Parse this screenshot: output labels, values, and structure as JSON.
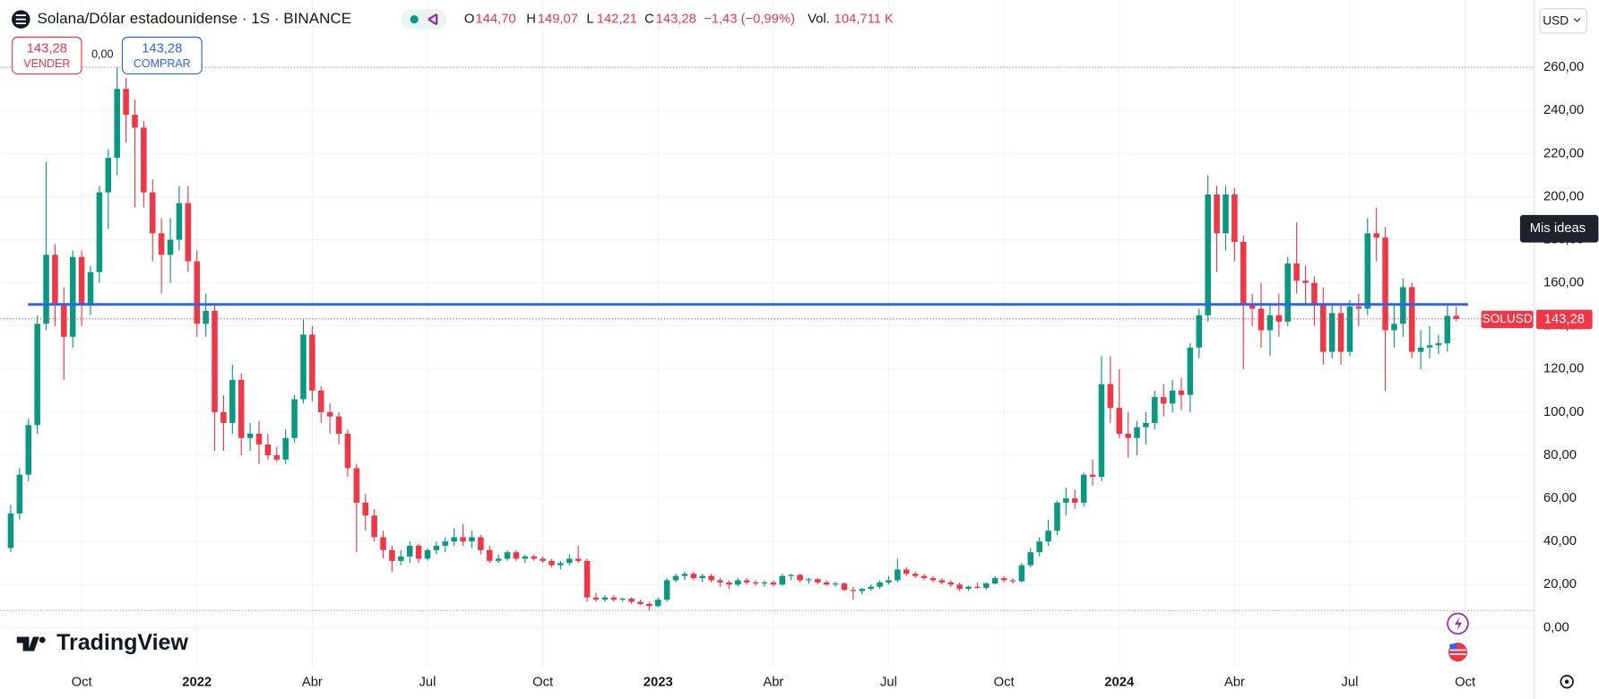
{
  "header": {
    "title": "Solana/Dólar estadounidense · 1S · BINANCE",
    "o_label": "O",
    "o": "144,70",
    "h_label": "H",
    "h": "149,07",
    "l_label": "L",
    "l": "142,21",
    "c_label": "C",
    "c": "143,28",
    "change": "−1,43 (−0,99%)",
    "vol_label": "Vol.",
    "vol": "104,711 K"
  },
  "trade": {
    "sell_price": "143,28",
    "sell": "VENDER",
    "spread": "0,00",
    "buy_price": "143,28",
    "buy": "COMPRAR"
  },
  "currency": "USD",
  "ideas": "Mis ideas",
  "brand": "TradingView",
  "price_label": {
    "symbol": "SOLUSD",
    "price": "143,28"
  },
  "chart_data": {
    "type": "candlestick",
    "up_color": "#089981",
    "down_color": "#f23645",
    "grid": true,
    "ylim": [
      -18.44,
      291.25
    ],
    "xlim": [
      -1.15,
      171.8
    ],
    "yticks": [
      {
        "value": 0,
        "label": "0,00"
      },
      {
        "value": 20,
        "label": "20,00"
      },
      {
        "value": 40,
        "label": "40,00"
      },
      {
        "value": 60,
        "label": "60,00"
      },
      {
        "value": 80,
        "label": "80,00"
      },
      {
        "value": 100,
        "label": "100,00"
      },
      {
        "value": 120,
        "label": "120,00"
      },
      {
        "value": 140,
        "label": "140,00"
      },
      {
        "value": 160,
        "label": "160,00"
      },
      {
        "value": 180,
        "label": "180,00"
      },
      {
        "value": 200,
        "label": "200,00"
      },
      {
        "value": 220,
        "label": "220,00"
      },
      {
        "value": 240,
        "label": "240,00"
      },
      {
        "value": 260,
        "label": "260,00"
      }
    ],
    "xticks": [
      {
        "value": 8,
        "label": "Oct"
      },
      {
        "value": 21,
        "label": "2022",
        "major": true
      },
      {
        "value": 34,
        "label": "Abr"
      },
      {
        "value": 47,
        "label": "Jul"
      },
      {
        "value": 60,
        "label": "Oct"
      },
      {
        "value": 73,
        "label": "2023",
        "major": true
      },
      {
        "value": 86,
        "label": "Abr"
      },
      {
        "value": 99,
        "label": "Jul"
      },
      {
        "value": 112,
        "label": "Oct"
      },
      {
        "value": 125,
        "label": "2024",
        "major": true
      },
      {
        "value": 138,
        "label": "Abr"
      },
      {
        "value": 151,
        "label": "Jul"
      },
      {
        "value": 164,
        "label": "Oct"
      }
    ],
    "horizontal_line": {
      "value": 150,
      "color": "#2962ff"
    },
    "high_low_lines": [
      260,
      8
    ],
    "ohlc": [
      [
        37,
        57,
        35,
        53
      ],
      [
        53,
        74,
        50,
        71
      ],
      [
        71,
        97,
        68,
        94
      ],
      [
        94,
        145,
        90,
        141
      ],
      [
        141,
        216,
        138,
        173
      ],
      [
        173,
        178,
        140,
        150
      ],
      [
        150,
        158,
        115,
        135
      ],
      [
        135,
        175,
        130,
        172
      ],
      [
        172,
        175,
        140,
        150
      ],
      [
        150,
        168,
        145,
        165
      ],
      [
        165,
        205,
        160,
        202
      ],
      [
        202,
        222,
        185,
        218
      ],
      [
        218,
        260,
        210,
        250
      ],
      [
        250,
        255,
        225,
        238
      ],
      [
        238,
        245,
        195,
        232
      ],
      [
        232,
        235,
        195,
        202
      ],
      [
        202,
        208,
        170,
        183
      ],
      [
        183,
        190,
        155,
        173
      ],
      [
        173,
        190,
        160,
        180
      ],
      [
        180,
        205,
        175,
        197
      ],
      [
        197,
        205,
        165,
        170
      ],
      [
        170,
        175,
        135,
        141
      ],
      [
        141,
        155,
        135,
        147
      ],
      [
        147,
        150,
        82,
        100
      ],
      [
        100,
        108,
        82,
        95
      ],
      [
        95,
        122,
        90,
        115
      ],
      [
        115,
        118,
        80,
        88
      ],
      [
        88,
        95,
        82,
        90
      ],
      [
        90,
        96,
        76,
        85
      ],
      [
        85,
        90,
        78,
        80
      ],
      [
        80,
        84,
        77,
        78
      ],
      [
        78,
        92,
        76,
        88
      ],
      [
        88,
        108,
        86,
        106
      ],
      [
        106,
        143,
        104,
        136
      ],
      [
        136,
        140,
        105,
        110
      ],
      [
        110,
        112,
        95,
        100
      ],
      [
        100,
        104,
        90,
        98
      ],
      [
        98,
        100,
        85,
        90
      ],
      [
        90,
        92,
        70,
        74
      ],
      [
        74,
        76,
        35,
        58
      ],
      [
        58,
        62,
        45,
        52
      ],
      [
        52,
        55,
        40,
        42
      ],
      [
        42,
        45,
        32,
        36
      ],
      [
        36,
        38,
        26,
        31
      ],
      [
        31,
        36,
        29,
        33
      ],
      [
        33,
        40,
        30,
        38
      ],
      [
        38,
        39,
        30,
        32
      ],
      [
        32,
        37,
        31,
        36
      ],
      [
        36,
        40,
        34,
        38
      ],
      [
        38,
        42,
        35,
        40
      ],
      [
        40,
        46,
        38,
        42
      ],
      [
        42,
        48,
        38,
        40
      ],
      [
        40,
        45,
        37,
        42
      ],
      [
        42,
        43,
        34,
        36
      ],
      [
        36,
        38,
        30,
        31
      ],
      [
        31,
        34,
        30,
        32
      ],
      [
        32,
        36,
        31,
        35
      ],
      [
        35,
        36,
        31,
        32
      ],
      [
        32,
        34,
        30,
        33
      ],
      [
        33,
        34,
        31,
        32
      ],
      [
        32,
        33,
        30,
        31
      ],
      [
        31,
        32,
        28,
        29
      ],
      [
        29,
        31,
        27,
        30
      ],
      [
        30,
        34,
        29,
        32
      ],
      [
        32,
        38,
        30,
        31
      ],
      [
        31,
        32,
        12,
        14
      ],
      [
        14,
        16,
        12,
        13
      ],
      [
        13,
        15,
        12,
        14
      ],
      [
        14,
        15,
        12,
        13
      ],
      [
        13,
        14,
        12,
        13.5
      ],
      [
        13.5,
        14,
        11,
        12
      ],
      [
        12,
        13,
        10.5,
        11
      ],
      [
        11,
        12,
        8,
        10
      ],
      [
        10,
        14,
        9.5,
        13
      ],
      [
        13,
        23,
        12,
        22
      ],
      [
        22,
        25,
        21,
        24
      ],
      [
        24,
        26,
        22,
        25
      ],
      [
        25,
        26,
        22,
        23
      ],
      [
        23,
        25,
        21,
        24
      ],
      [
        24,
        25,
        21,
        22
      ],
      [
        22,
        23,
        19,
        21
      ],
      [
        21,
        22,
        18,
        20
      ],
      [
        20,
        23,
        19,
        22
      ],
      [
        22,
        23,
        20,
        21
      ],
      [
        21,
        22,
        19.5,
        20.5
      ],
      [
        20.5,
        22,
        19,
        21
      ],
      [
        21,
        22,
        19,
        20
      ],
      [
        20,
        25,
        19.5,
        24
      ],
      [
        24,
        25,
        22,
        24.5
      ],
      [
        24.5,
        25,
        21,
        22
      ],
      [
        22,
        23,
        20.5,
        22.5
      ],
      [
        22.5,
        23,
        20,
        21
      ],
      [
        21,
        22,
        19.5,
        20
      ],
      [
        20,
        21.5,
        19,
        20.5
      ],
      [
        20.5,
        21,
        17,
        17.5
      ],
      [
        17.5,
        19,
        13,
        17
      ],
      [
        17,
        18.5,
        15.5,
        18
      ],
      [
        18,
        20,
        17,
        19
      ],
      [
        19,
        22,
        18,
        21
      ],
      [
        21,
        24,
        20,
        22
      ],
      [
        22,
        32,
        21,
        27
      ],
      [
        27,
        28,
        24,
        25
      ],
      [
        25,
        26,
        23,
        24
      ],
      [
        24,
        25,
        22,
        23
      ],
      [
        23,
        24,
        21,
        22
      ],
      [
        22,
        23,
        20,
        21
      ],
      [
        21,
        22,
        19,
        20
      ],
      [
        20,
        21,
        17,
        18
      ],
      [
        18,
        19.5,
        17,
        19
      ],
      [
        19,
        21,
        18,
        18.5
      ],
      [
        18.5,
        21,
        17.5,
        20.5
      ],
      [
        20.5,
        24,
        20,
        23
      ],
      [
        23,
        24,
        21,
        22
      ],
      [
        22,
        23,
        20.5,
        21.5
      ],
      [
        21.5,
        30,
        21,
        29
      ],
      [
        29,
        37,
        28,
        35
      ],
      [
        35,
        42,
        33,
        40
      ],
      [
        40,
        50,
        38,
        45
      ],
      [
        45,
        59,
        43,
        58
      ],
      [
        58,
        65,
        52,
        60
      ],
      [
        60,
        64,
        55,
        58
      ],
      [
        58,
        72,
        56,
        71
      ],
      [
        71,
        78,
        66,
        70
      ],
      [
        70,
        126,
        68,
        113
      ],
      [
        113,
        126,
        95,
        102
      ],
      [
        102,
        120,
        88,
        90
      ],
      [
        90,
        100,
        79,
        88
      ],
      [
        88,
        96,
        80,
        93
      ],
      [
        93,
        100,
        85,
        95
      ],
      [
        95,
        110,
        92,
        107
      ],
      [
        107,
        113,
        98,
        104
      ],
      [
        104,
        115,
        100,
        110
      ],
      [
        110,
        116,
        101,
        108
      ],
      [
        108,
        132,
        100,
        130
      ],
      [
        130,
        148,
        125,
        145
      ],
      [
        145,
        210,
        142,
        201
      ],
      [
        201,
        205,
        165,
        183
      ],
      [
        183,
        205,
        175,
        201
      ],
      [
        201,
        204,
        170,
        179
      ],
      [
        179,
        182,
        120,
        150
      ],
      [
        150,
        155,
        140,
        148
      ],
      [
        148,
        160,
        130,
        138
      ],
      [
        138,
        150,
        126,
        145
      ],
      [
        145,
        155,
        135,
        142
      ],
      [
        142,
        172,
        140,
        169
      ],
      [
        169,
        188,
        155,
        161
      ],
      [
        161,
        168,
        150,
        160
      ],
      [
        160,
        163,
        140,
        150
      ],
      [
        150,
        158,
        122,
        128
      ],
      [
        128,
        150,
        125,
        146
      ],
      [
        146,
        150,
        122,
        128
      ],
      [
        128,
        152,
        126,
        149
      ],
      [
        149,
        155,
        140,
        148
      ],
      [
        148,
        190,
        145,
        183
      ],
      [
        183,
        195,
        170,
        181
      ],
      [
        181,
        186,
        110,
        138
      ],
      [
        138,
        150,
        130,
        141
      ],
      [
        141,
        162,
        135,
        158
      ],
      [
        158,
        160,
        125,
        128
      ],
      [
        128,
        138,
        120,
        130
      ],
      [
        130,
        140,
        125,
        131
      ],
      [
        131,
        136,
        127,
        132
      ],
      [
        132,
        150,
        128,
        144.7
      ],
      [
        144.7,
        149.07,
        142.21,
        143.28
      ]
    ]
  }
}
